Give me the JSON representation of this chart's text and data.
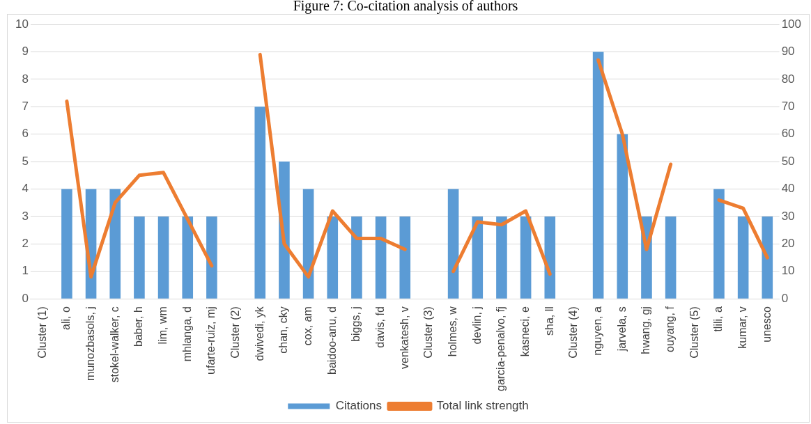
{
  "chart_data": {
    "type": "bar",
    "title": "Figure 7: Co-citation analysis of authors",
    "categories": [
      "Cluster (1)",
      "ali, o",
      "munozbasols, j",
      "stokel-walker, c",
      "baber, h",
      "lim, wm",
      "mhlanga, d",
      "ufarte-ruiz, mj",
      "Cluster (2)",
      "dwivedi, yk",
      "chan, cky",
      "cox, am",
      "baidoo-anu, d",
      "biggs, j",
      "davis, fd",
      "venkatesh, v",
      "Cluster (3)",
      "holmes, w",
      "devlin, j",
      "garcia-penalvo, fj",
      "kasneci, e",
      "sha, ll",
      "Cluster (4)",
      "nguyen, a",
      "jarvela, s",
      "hwang, gj",
      "ouyang, f",
      "Cluster (5)",
      "tlili, a",
      "kumar, v",
      "unesco"
    ],
    "series": [
      {
        "name": "Citations",
        "color": "#5b9bd5",
        "values": [
          null,
          4,
          4,
          4,
          3,
          3,
          3,
          3,
          null,
          7,
          5,
          4,
          3,
          3,
          3,
          3,
          null,
          4,
          3,
          3,
          3,
          3,
          null,
          9,
          6,
          3,
          3,
          null,
          4,
          3,
          3
        ]
      },
      {
        "name": "Total link strength",
        "type": "line",
        "axis": "y2",
        "color": "#ed7d31",
        "values": [
          null,
          72,
          8,
          35,
          45,
          46,
          29,
          12,
          null,
          89,
          20,
          8,
          32,
          22,
          22,
          18,
          null,
          10,
          28,
          27,
          32,
          9,
          null,
          87,
          60,
          18,
          49,
          null,
          36,
          33,
          15
        ]
      }
    ],
    "ylim": [
      0,
      10
    ],
    "yticks": [
      0,
      1,
      2,
      3,
      4,
      5,
      6,
      7,
      8,
      9,
      10
    ],
    "y2lim": [
      0,
      100
    ],
    "y2ticks": [
      0,
      10,
      20,
      30,
      40,
      50,
      60,
      70,
      80,
      90,
      100
    ],
    "grid": "y",
    "legend": "bottom",
    "marker": "none"
  }
}
